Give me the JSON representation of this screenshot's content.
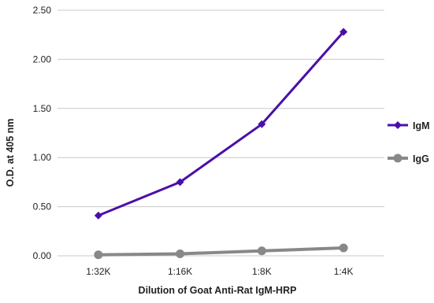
{
  "chart_data": {
    "type": "line",
    "categories": [
      "1:32K",
      "1:16K",
      "1:8K",
      "1:4K"
    ],
    "series": [
      {
        "name": "IgM",
        "values": [
          0.41,
          0.75,
          1.34,
          2.28
        ],
        "color": "#4B0FA8",
        "marker": "diamond"
      },
      {
        "name": "IgG",
        "values": [
          0.01,
          0.02,
          0.05,
          0.08
        ],
        "color": "#888888",
        "marker": "circle"
      }
    ],
    "title": "",
    "xlabel": "Dilution of Goat Anti-Rat IgM-HRP",
    "ylabel": "O.D. at 405 nm",
    "ylim": [
      0,
      2.5
    ],
    "yticks": [
      "0.00",
      "0.50",
      "1.00",
      "1.50",
      "2.00",
      "2.50"
    ],
    "grid": "horizontal",
    "legend": "right"
  }
}
